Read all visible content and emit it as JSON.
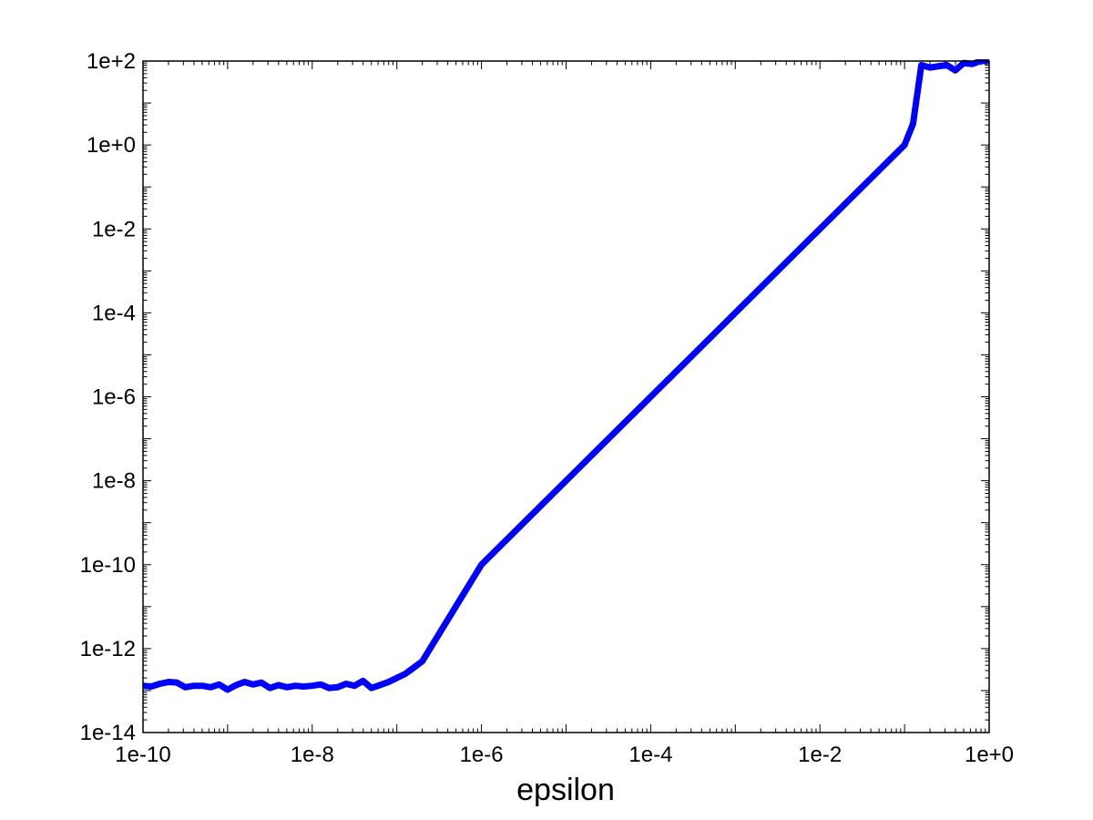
{
  "chart_data": {
    "type": "line",
    "title": "",
    "xlabel": "epsilon",
    "ylabel": "",
    "xscale": "log",
    "yscale": "log",
    "xlim": [
      1e-10,
      1
    ],
    "ylim": [
      1e-14,
      100
    ],
    "grid": false,
    "legend": "none",
    "x_ticks": [
      {
        "value": 1e-10,
        "label": "1e-10"
      },
      {
        "value": 1e-08,
        "label": "1e-8"
      },
      {
        "value": 1e-06,
        "label": "1e-6"
      },
      {
        "value": 0.0001,
        "label": "1e-4"
      },
      {
        "value": 0.01,
        "label": "1e-2"
      },
      {
        "value": 1,
        "label": "1e+0"
      }
    ],
    "y_ticks": [
      {
        "value": 1e-14,
        "label": "1e-14"
      },
      {
        "value": 1e-12,
        "label": "1e-12"
      },
      {
        "value": 1e-10,
        "label": "1e-10"
      },
      {
        "value": 1e-08,
        "label": "1e-8"
      },
      {
        "value": 1e-06,
        "label": "1e-6"
      },
      {
        "value": 0.0001,
        "label": "1e-4"
      },
      {
        "value": 0.01,
        "label": "1e-2"
      },
      {
        "value": 1,
        "label": "1e+0"
      },
      {
        "value": 100,
        "label": "1e+2"
      }
    ],
    "series": [
      {
        "color": "#0000ff",
        "x": [
          1e-10,
          1.26e-10,
          1.58e-10,
          2e-10,
          2.51e-10,
          3.16e-10,
          3.98e-10,
          5.01e-10,
          6.31e-10,
          7.94e-10,
          1e-09,
          1.26e-09,
          1.58e-09,
          2e-09,
          2.51e-09,
          3.16e-09,
          3.98e-09,
          5.01e-09,
          6.31e-09,
          7.94e-09,
          1e-08,
          1.26e-08,
          1.58e-08,
          2e-08,
          2.51e-08,
          3.16e-08,
          3.98e-08,
          5.01e-08,
          6.31e-08,
          7.94e-08,
          1e-07,
          1.26e-07,
          1.58e-07,
          2e-07,
          1e-06,
          1e-05,
          0.0001,
          0.001,
          0.01,
          0.1,
          0.126,
          0.158,
          0.2,
          0.251,
          0.316,
          0.398,
          0.501,
          0.631,
          0.794,
          1
        ],
        "y": [
          1.3e-13,
          1.25e-13,
          1.45e-13,
          1.6e-13,
          1.55e-13,
          1.2e-13,
          1.3e-13,
          1.3e-13,
          1.2e-13,
          1.4e-13,
          1.05e-13,
          1.35e-13,
          1.6e-13,
          1.4e-13,
          1.55e-13,
          1.15e-13,
          1.35e-13,
          1.2e-13,
          1.3e-13,
          1.25e-13,
          1.3e-13,
          1.4e-13,
          1.15e-13,
          1.2e-13,
          1.45e-13,
          1.3e-13,
          1.7e-13,
          1.15e-13,
          1.35e-13,
          1.6e-13,
          2e-13,
          2.5e-13,
          3.5e-13,
          5e-13,
          1e-10,
          1e-08,
          1e-06,
          0.0001,
          0.01,
          1,
          3.2,
          80,
          70,
          75,
          80,
          60,
          90,
          85,
          100,
          100
        ]
      }
    ]
  }
}
